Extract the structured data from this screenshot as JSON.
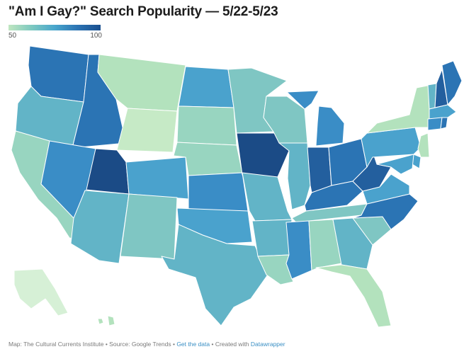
{
  "title": "\"Am I Gay?\" Search Popularity — 5/22-5/23",
  "legend": {
    "min": "50",
    "max": "100"
  },
  "colors": {
    "v50": "#d6f0d6",
    "v55": "#c6eac6",
    "v60": "#b3e2bd",
    "v65": "#98d5c0",
    "v70": "#7fc6c3",
    "v75": "#62b4c7",
    "v80": "#4aa2cd",
    "v85": "#3a8dc6",
    "v90": "#2b74b4",
    "v95": "#235f9e",
    "v100": "#1b4b86"
  },
  "states": [
    {
      "id": "WA",
      "level": "v90"
    },
    {
      "id": "OR",
      "level": "v75"
    },
    {
      "id": "CA",
      "level": "v65"
    },
    {
      "id": "ID",
      "level": "v90"
    },
    {
      "id": "NV",
      "level": "v85"
    },
    {
      "id": "MT",
      "level": "v60"
    },
    {
      "id": "WY",
      "level": "v55"
    },
    {
      "id": "UT",
      "level": "v100"
    },
    {
      "id": "AZ",
      "level": "v75"
    },
    {
      "id": "CO",
      "level": "v80"
    },
    {
      "id": "NM",
      "level": "v70"
    },
    {
      "id": "ND",
      "level": "v80"
    },
    {
      "id": "SD",
      "level": "v65"
    },
    {
      "id": "NE",
      "level": "v65"
    },
    {
      "id": "KS",
      "level": "v85"
    },
    {
      "id": "OK",
      "level": "v80"
    },
    {
      "id": "TX",
      "level": "v75"
    },
    {
      "id": "MN",
      "level": "v70"
    },
    {
      "id": "IA",
      "level": "v100"
    },
    {
      "id": "MO",
      "level": "v75"
    },
    {
      "id": "AR",
      "level": "v75"
    },
    {
      "id": "LA",
      "level": "v65"
    },
    {
      "id": "WI",
      "level": "v70"
    },
    {
      "id": "IL",
      "level": "v75"
    },
    {
      "id": "MI",
      "level": "v85"
    },
    {
      "id": "IN",
      "level": "v95"
    },
    {
      "id": "OH",
      "level": "v90"
    },
    {
      "id": "KY",
      "level": "v90"
    },
    {
      "id": "TN",
      "level": "v70"
    },
    {
      "id": "MS",
      "level": "v85"
    },
    {
      "id": "AL",
      "level": "v65"
    },
    {
      "id": "GA",
      "level": "v75"
    },
    {
      "id": "FL",
      "level": "v60"
    },
    {
      "id": "SC",
      "level": "v70"
    },
    {
      "id": "NC",
      "level": "v90"
    },
    {
      "id": "VA",
      "level": "v80"
    },
    {
      "id": "WV",
      "level": "v95"
    },
    {
      "id": "PA",
      "level": "v80"
    },
    {
      "id": "NY",
      "level": "v60"
    },
    {
      "id": "NJ",
      "level": "v60"
    },
    {
      "id": "DE",
      "level": "v80"
    },
    {
      "id": "MD",
      "level": "v80"
    },
    {
      "id": "VT",
      "level": "v75"
    },
    {
      "id": "NH",
      "level": "v95"
    },
    {
      "id": "ME",
      "level": "v90"
    },
    {
      "id": "MA",
      "level": "v80"
    },
    {
      "id": "CT",
      "level": "v85"
    },
    {
      "id": "RI",
      "level": "v90"
    },
    {
      "id": "AK",
      "level": "v50"
    },
    {
      "id": "HI",
      "level": "v60"
    }
  ],
  "footer": {
    "source": "Map: The Cultural Currents Institute • Source: Google Trends •",
    "get_data": "Get the data",
    "created": "• Created with",
    "tool": "Datawrapper"
  }
}
